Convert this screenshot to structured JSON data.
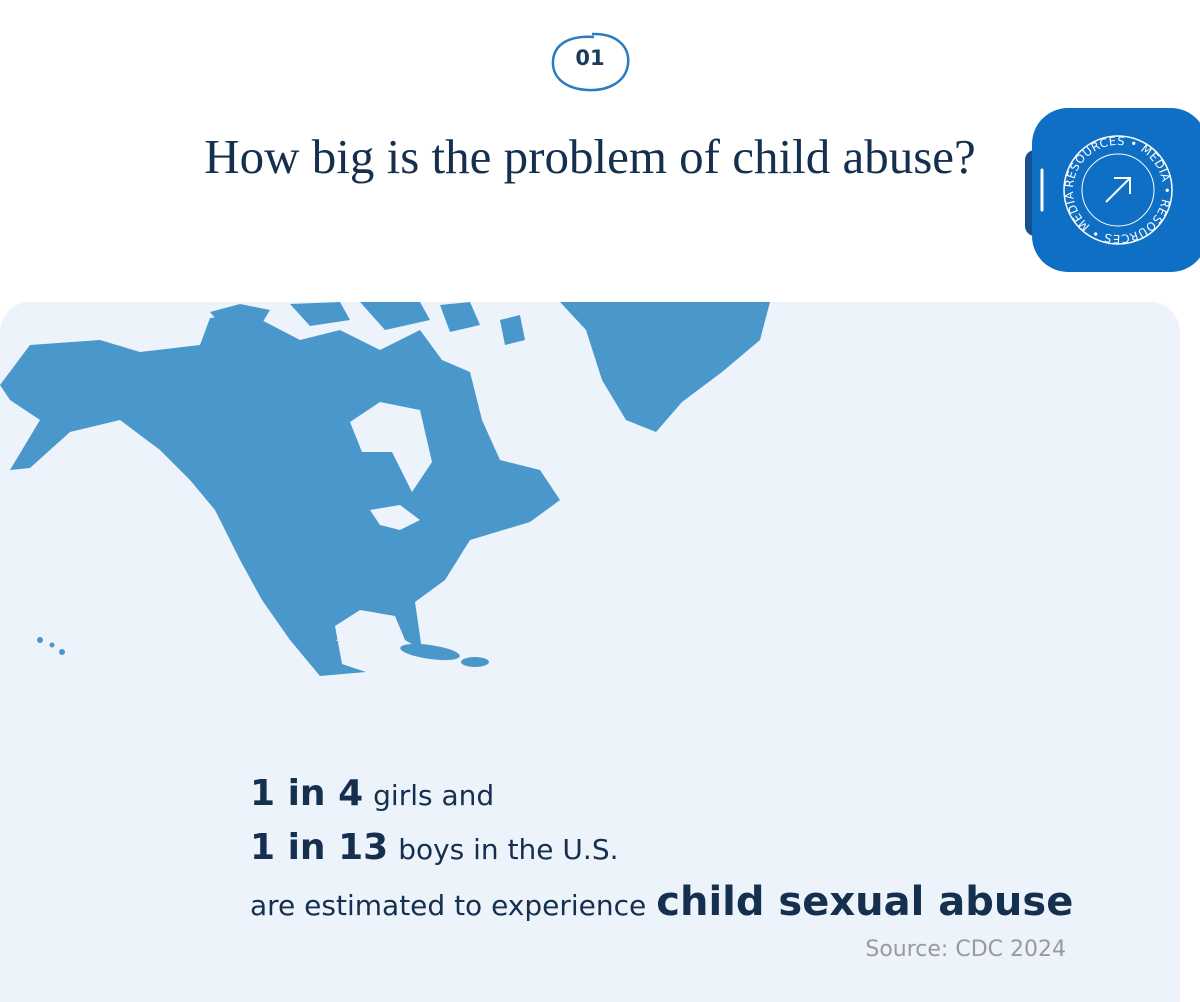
{
  "header": {
    "step": "01",
    "title": "How big is the problem of child abuse?"
  },
  "badge": {
    "label": "RESOURCES • MEDIA • RESOURCES • MEDIA •"
  },
  "statistic": {
    "lines": [
      {
        "bold": "1 in 4",
        "rest": "girls and"
      },
      {
        "bold": "1 in 13",
        "rest": "boys in the U.S."
      },
      {
        "rest": "are estimated to experience",
        "bold": "child sexual abuse"
      }
    ],
    "source": "Source: CDC 2024"
  }
}
